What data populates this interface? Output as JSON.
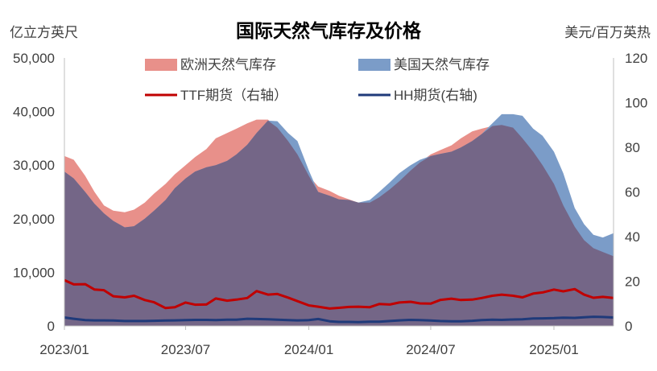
{
  "chart_data": {
    "type": "area",
    "title": "国际天然气库存及价格",
    "ylabel_left": "亿立方英尺",
    "ylabel_right": "美元/百万英热",
    "y_left": {
      "min": 0,
      "max": 50000,
      "ticks": [
        0,
        10000,
        20000,
        30000,
        40000,
        50000
      ],
      "tick_labels": [
        "0",
        "10,000",
        "20,000",
        "30,000",
        "40,000",
        "50,000"
      ]
    },
    "y_right": {
      "min": 0,
      "max": 120,
      "ticks": [
        0,
        20,
        40,
        60,
        80,
        100,
        120
      ],
      "tick_labels": [
        "0",
        "20",
        "40",
        "60",
        "80",
        "100",
        "120"
      ]
    },
    "x_ticks": [
      "2023-01-01",
      "2023-07-01",
      "2024-01-01",
      "2024-07-01",
      "2025-01-01"
    ],
    "x_tick_labels": [
      "2023/01",
      "2023/07",
      "2024/01",
      "2024/07",
      "2025/01"
    ],
    "x_range": [
      "2023-01-01",
      "2025-03-31"
    ],
    "legend": [
      {
        "name": "欧洲天然气库存",
        "kind": "area",
        "color": "#E8908A"
      },
      {
        "name": "美国天然气库存",
        "kind": "area",
        "color": "#7B9CC8"
      },
      {
        "name": "TTF期货（右轴）",
        "kind": "line",
        "color": "#C00000"
      },
      {
        "name": "HH期货(右轴)",
        "kind": "line",
        "color": "#1F3A7A"
      }
    ],
    "overlap_color": "#746687",
    "series": [
      {
        "name": "欧洲天然气库存",
        "axis": "left",
        "color": "#E8908A",
        "points": [
          [
            "2023-01-01",
            31700
          ],
          [
            "2023-01-15",
            31000
          ],
          [
            "2023-02-01",
            28000
          ],
          [
            "2023-02-15",
            25000
          ],
          [
            "2023-03-01",
            22500
          ],
          [
            "2023-03-15",
            21500
          ],
          [
            "2023-04-01",
            21200
          ],
          [
            "2023-04-15",
            21700
          ],
          [
            "2023-05-01",
            23000
          ],
          [
            "2023-05-15",
            24700
          ],
          [
            "2023-06-01",
            26500
          ],
          [
            "2023-06-15",
            28300
          ],
          [
            "2023-07-01",
            30000
          ],
          [
            "2023-07-15",
            31500
          ],
          [
            "2023-08-01",
            33000
          ],
          [
            "2023-08-15",
            35000
          ],
          [
            "2023-09-01",
            36000
          ],
          [
            "2023-09-15",
            36800
          ],
          [
            "2023-10-01",
            37800
          ],
          [
            "2023-10-15",
            38500
          ],
          [
            "2023-11-01",
            38500
          ],
          [
            "2023-11-15",
            37000
          ],
          [
            "2023-12-01",
            34500
          ],
          [
            "2023-12-15",
            32000
          ],
          [
            "2024-01-01",
            28000
          ],
          [
            "2024-01-15",
            26000
          ],
          [
            "2024-02-01",
            25200
          ],
          [
            "2024-02-15",
            24300
          ],
          [
            "2024-03-01",
            23600
          ],
          [
            "2024-03-15",
            23000
          ],
          [
            "2024-04-01",
            23000
          ],
          [
            "2024-04-15",
            24000
          ],
          [
            "2024-05-01",
            25500
          ],
          [
            "2024-05-15",
            27000
          ],
          [
            "2024-06-01",
            29000
          ],
          [
            "2024-06-15",
            30500
          ],
          [
            "2024-07-01",
            32000
          ],
          [
            "2024-07-15",
            32800
          ],
          [
            "2024-08-01",
            33700
          ],
          [
            "2024-08-15",
            35000
          ],
          [
            "2024-09-01",
            36300
          ],
          [
            "2024-09-15",
            36800
          ],
          [
            "2024-10-01",
            37300
          ],
          [
            "2024-10-15",
            37500
          ],
          [
            "2024-11-01",
            37000
          ],
          [
            "2024-11-15",
            35000
          ],
          [
            "2024-12-01",
            32500
          ],
          [
            "2024-12-15",
            30000
          ],
          [
            "2025-01-01",
            26500
          ],
          [
            "2025-01-15",
            22500
          ],
          [
            "2025-02-01",
            18500
          ],
          [
            "2025-02-15",
            16000
          ],
          [
            "2025-03-01",
            14500
          ],
          [
            "2025-03-15",
            13800
          ],
          [
            "2025-03-31",
            13000
          ]
        ]
      },
      {
        "name": "美国天然气库存",
        "axis": "left",
        "color": "#7B9CC8",
        "points": [
          [
            "2023-01-01",
            28800
          ],
          [
            "2023-01-15",
            27500
          ],
          [
            "2023-02-01",
            25000
          ],
          [
            "2023-02-15",
            22800
          ],
          [
            "2023-03-01",
            21000
          ],
          [
            "2023-03-15",
            19600
          ],
          [
            "2023-04-01",
            18400
          ],
          [
            "2023-04-15",
            18600
          ],
          [
            "2023-05-01",
            20000
          ],
          [
            "2023-05-15",
            21500
          ],
          [
            "2023-06-01",
            23500
          ],
          [
            "2023-06-15",
            25700
          ],
          [
            "2023-07-01",
            27500
          ],
          [
            "2023-07-15",
            28800
          ],
          [
            "2023-08-01",
            29600
          ],
          [
            "2023-08-15",
            30000
          ],
          [
            "2023-09-01",
            30800
          ],
          [
            "2023-09-15",
            32000
          ],
          [
            "2023-10-01",
            33800
          ],
          [
            "2023-10-15",
            36000
          ],
          [
            "2023-11-01",
            38300
          ],
          [
            "2023-11-15",
            38200
          ],
          [
            "2023-12-01",
            36000
          ],
          [
            "2023-12-15",
            34500
          ],
          [
            "2024-01-01",
            29000
          ],
          [
            "2024-01-15",
            25000
          ],
          [
            "2024-02-01",
            24300
          ],
          [
            "2024-02-15",
            23600
          ],
          [
            "2024-03-01",
            23500
          ],
          [
            "2024-03-15",
            23000
          ],
          [
            "2024-04-01",
            23500
          ],
          [
            "2024-04-15",
            25000
          ],
          [
            "2024-05-01",
            26800
          ],
          [
            "2024-05-15",
            28500
          ],
          [
            "2024-06-01",
            30000
          ],
          [
            "2024-06-15",
            31000
          ],
          [
            "2024-07-01",
            31700
          ],
          [
            "2024-07-15",
            32100
          ],
          [
            "2024-08-01",
            32500
          ],
          [
            "2024-08-15",
            33300
          ],
          [
            "2024-09-01",
            34500
          ],
          [
            "2024-09-15",
            35800
          ],
          [
            "2024-10-01",
            37800
          ],
          [
            "2024-10-15",
            39500
          ],
          [
            "2024-11-01",
            39500
          ],
          [
            "2024-11-15",
            39200
          ],
          [
            "2024-12-01",
            36800
          ],
          [
            "2024-12-15",
            35500
          ],
          [
            "2025-01-01",
            32500
          ],
          [
            "2025-01-15",
            28500
          ],
          [
            "2025-02-01",
            22000
          ],
          [
            "2025-02-15",
            19000
          ],
          [
            "2025-03-01",
            17000
          ],
          [
            "2025-03-15",
            16500
          ],
          [
            "2025-03-31",
            17300
          ]
        ]
      },
      {
        "name": "TTF期货（右轴）",
        "axis": "right",
        "color": "#C00000",
        "points": [
          [
            "2023-01-01",
            20.5
          ],
          [
            "2023-01-15",
            18.6
          ],
          [
            "2023-02-01",
            18.7
          ],
          [
            "2023-02-15",
            16.3
          ],
          [
            "2023-03-01",
            16.0
          ],
          [
            "2023-03-15",
            13.3
          ],
          [
            "2023-04-01",
            12.8
          ],
          [
            "2023-04-15",
            13.5
          ],
          [
            "2023-05-01",
            11.6
          ],
          [
            "2023-05-15",
            10.6
          ],
          [
            "2023-06-01",
            8.0
          ],
          [
            "2023-06-15",
            8.4
          ],
          [
            "2023-07-01",
            10.5
          ],
          [
            "2023-07-15",
            9.5
          ],
          [
            "2023-08-01",
            9.6
          ],
          [
            "2023-08-15",
            12.3
          ],
          [
            "2023-09-01",
            11.3
          ],
          [
            "2023-09-15",
            11.8
          ],
          [
            "2023-10-01",
            12.5
          ],
          [
            "2023-10-15",
            15.6
          ],
          [
            "2023-11-01",
            14.0
          ],
          [
            "2023-11-15",
            14.3
          ],
          [
            "2023-12-01",
            12.7
          ],
          [
            "2023-12-15",
            11.1
          ],
          [
            "2024-01-01",
            9.2
          ],
          [
            "2024-01-15",
            8.6
          ],
          [
            "2024-02-01",
            7.8
          ],
          [
            "2024-02-15",
            8.1
          ],
          [
            "2024-03-01",
            8.5
          ],
          [
            "2024-03-15",
            8.6
          ],
          [
            "2024-04-01",
            8.4
          ],
          [
            "2024-04-15",
            9.8
          ],
          [
            "2024-05-01",
            9.6
          ],
          [
            "2024-05-15",
            10.5
          ],
          [
            "2024-06-01",
            10.8
          ],
          [
            "2024-06-15",
            10.1
          ],
          [
            "2024-07-01",
            10.0
          ],
          [
            "2024-07-15",
            11.6
          ],
          [
            "2024-08-01",
            12.2
          ],
          [
            "2024-08-15",
            11.6
          ],
          [
            "2024-09-01",
            11.8
          ],
          [
            "2024-09-15",
            12.5
          ],
          [
            "2024-10-01",
            13.5
          ],
          [
            "2024-10-15",
            14.0
          ],
          [
            "2024-11-01",
            13.5
          ],
          [
            "2024-11-15",
            12.8
          ],
          [
            "2024-12-01",
            14.5
          ],
          [
            "2024-12-15",
            15.0
          ],
          [
            "2025-01-01",
            16.3
          ],
          [
            "2025-01-15",
            15.5
          ],
          [
            "2025-02-01",
            16.5
          ],
          [
            "2025-02-15",
            14.0
          ],
          [
            "2025-03-01",
            12.6
          ],
          [
            "2025-03-15",
            13.0
          ],
          [
            "2025-03-31",
            12.5
          ]
        ]
      },
      {
        "name": "HH期货(右轴)",
        "axis": "right",
        "color": "#1F3A7A",
        "points": [
          [
            "2023-01-01",
            3.8
          ],
          [
            "2023-01-15",
            3.2
          ],
          [
            "2023-02-01",
            2.6
          ],
          [
            "2023-02-15",
            2.5
          ],
          [
            "2023-03-01",
            2.5
          ],
          [
            "2023-03-15",
            2.4
          ],
          [
            "2023-04-01",
            2.2
          ],
          [
            "2023-04-15",
            2.2
          ],
          [
            "2023-05-01",
            2.2
          ],
          [
            "2023-05-15",
            2.3
          ],
          [
            "2023-06-01",
            2.4
          ],
          [
            "2023-06-15",
            2.5
          ],
          [
            "2023-07-01",
            2.6
          ],
          [
            "2023-07-15",
            2.7
          ],
          [
            "2023-08-01",
            2.7
          ],
          [
            "2023-08-15",
            2.6
          ],
          [
            "2023-09-01",
            2.8
          ],
          [
            "2023-09-15",
            2.8
          ],
          [
            "2023-10-01",
            3.2
          ],
          [
            "2023-10-15",
            3.1
          ],
          [
            "2023-11-01",
            3.0
          ],
          [
            "2023-11-15",
            2.8
          ],
          [
            "2023-12-01",
            2.6
          ],
          [
            "2023-12-15",
            2.5
          ],
          [
            "2024-01-01",
            2.6
          ],
          [
            "2024-01-15",
            3.1
          ],
          [
            "2024-02-01",
            2.1
          ],
          [
            "2024-02-15",
            1.8
          ],
          [
            "2024-03-01",
            1.8
          ],
          [
            "2024-03-15",
            1.7
          ],
          [
            "2024-04-01",
            1.9
          ],
          [
            "2024-04-15",
            1.9
          ],
          [
            "2024-05-01",
            2.2
          ],
          [
            "2024-05-15",
            2.5
          ],
          [
            "2024-06-01",
            2.7
          ],
          [
            "2024-06-15",
            2.6
          ],
          [
            "2024-07-01",
            2.4
          ],
          [
            "2024-07-15",
            2.2
          ],
          [
            "2024-08-01",
            2.1
          ],
          [
            "2024-08-15",
            2.1
          ],
          [
            "2024-09-01",
            2.3
          ],
          [
            "2024-09-15",
            2.6
          ],
          [
            "2024-10-01",
            2.8
          ],
          [
            "2024-10-15",
            2.7
          ],
          [
            "2024-11-01",
            2.9
          ],
          [
            "2024-11-15",
            3.0
          ],
          [
            "2024-12-01",
            3.3
          ],
          [
            "2024-12-15",
            3.4
          ],
          [
            "2025-01-01",
            3.5
          ],
          [
            "2025-01-15",
            3.7
          ],
          [
            "2025-02-01",
            3.6
          ],
          [
            "2025-02-15",
            3.9
          ],
          [
            "2025-03-01",
            4.1
          ],
          [
            "2025-03-15",
            4.0
          ],
          [
            "2025-03-31",
            3.8
          ]
        ]
      }
    ]
  }
}
